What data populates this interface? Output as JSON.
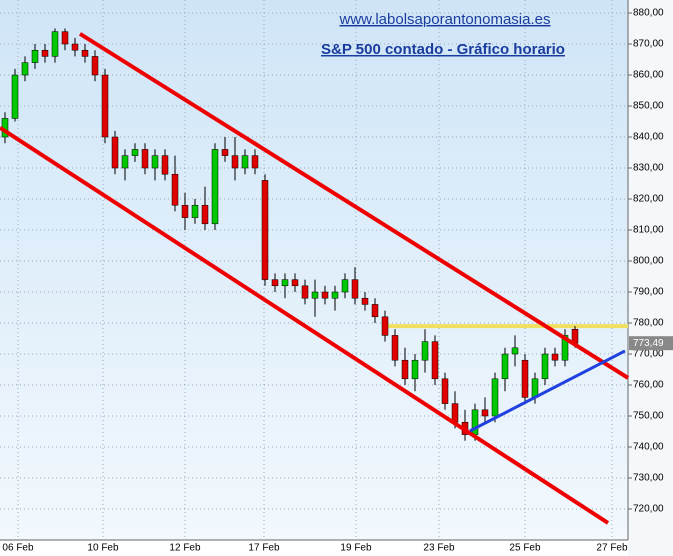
{
  "chart_data": {
    "type": "candlestick",
    "title": "S&P 500 contado - Gráfico horario",
    "subtitle": "www.labolsaporantonomasia.es",
    "open": [
      840,
      846,
      860,
      864,
      868,
      866,
      874,
      870,
      868,
      866,
      860,
      840,
      830,
      834,
      836,
      830,
      834,
      828,
      818,
      814,
      818,
      812,
      836,
      834,
      830,
      834,
      826,
      794,
      792,
      794,
      792,
      788,
      790,
      788,
      790,
      794,
      788,
      786,
      782,
      776,
      768,
      762,
      768,
      774,
      762,
      754,
      748,
      744,
      752,
      750,
      762,
      770,
      768,
      756,
      762,
      770,
      768,
      778
    ],
    "high": [
      848,
      862,
      866,
      870,
      870,
      875,
      875,
      872,
      870,
      868,
      862,
      842,
      836,
      838,
      838,
      836,
      836,
      834,
      822,
      820,
      824,
      838,
      840,
      840,
      836,
      836,
      828,
      796,
      796,
      796,
      794,
      794,
      792,
      792,
      796,
      798,
      790,
      788,
      784,
      778,
      772,
      770,
      778,
      776,
      764,
      758,
      752,
      754,
      756,
      764,
      772,
      776,
      770,
      764,
      772,
      772,
      778,
      779
    ],
    "low": [
      838,
      845,
      858,
      862,
      864,
      864,
      868,
      866,
      864,
      858,
      838,
      828,
      826,
      832,
      828,
      826,
      826,
      816,
      810,
      812,
      810,
      810,
      832,
      826,
      828,
      828,
      792,
      790,
      788,
      790,
      786,
      782,
      786,
      784,
      788,
      786,
      784,
      780,
      774,
      766,
      760,
      758,
      764,
      760,
      752,
      746,
      742,
      742,
      748,
      748,
      758,
      766,
      754,
      754,
      760,
      766,
      766,
      772
    ],
    "close": [
      846,
      860,
      864,
      868,
      866,
      874,
      870,
      868,
      866,
      860,
      840,
      830,
      834,
      836,
      830,
      834,
      828,
      818,
      814,
      818,
      812,
      836,
      834,
      830,
      834,
      830,
      794,
      792,
      794,
      792,
      788,
      790,
      788,
      790,
      794,
      788,
      786,
      782,
      776,
      768,
      762,
      768,
      774,
      762,
      754,
      748,
      744,
      752,
      750,
      762,
      770,
      772,
      756,
      762,
      770,
      768,
      776,
      773.49
    ],
    "up_color": "#00c800",
    "down_color": "#e00000",
    "last_price": {
      "value": 773.49,
      "label": "773,49"
    },
    "resistance": {
      "value": 779,
      "color": "#f0e060"
    },
    "channel_upper": {
      "x": [
        7.5,
        62.3
      ],
      "y": [
        873.3,
        762.3
      ],
      "color": "#ee0000"
    },
    "channel_lower": {
      "x": [
        -0.5,
        60.3
      ],
      "y": [
        843,
        715.5
      ],
      "color": "#ee0000"
    },
    "support": {
      "x": [
        46.5,
        62
      ],
      "y": [
        745.2,
        771
      ],
      "color": "#2040e0"
    },
    "xlim": [
      -0.5,
      62.3
    ],
    "ylim": [
      710,
      884.2
    ],
    "xticks": [
      {
        "value": 1.3,
        "label": "06 Feb"
      },
      {
        "value": 9.8,
        "label": "10 Feb"
      },
      {
        "value": 18,
        "label": "12 Feb"
      },
      {
        "value": 25.9,
        "label": "17 Feb"
      },
      {
        "value": 35.1,
        "label": "19 Feb"
      },
      {
        "value": 43.4,
        "label": "23 Feb"
      },
      {
        "value": 52,
        "label": "25 Feb"
      },
      {
        "value": 60.7,
        "label": "27 Feb"
      }
    ],
    "yticks": [
      {
        "value": 720,
        "label": "720,00"
      },
      {
        "value": 730,
        "label": "730,00"
      },
      {
        "value": 740,
        "label": "740,00"
      },
      {
        "value": 750,
        "label": "750,00"
      },
      {
        "value": 760,
        "label": "760,00"
      },
      {
        "value": 770,
        "label": "770,00"
      },
      {
        "value": 780,
        "label": "780,00"
      },
      {
        "value": 790,
        "label": "790,00"
      },
      {
        "value": 800,
        "label": "800,00"
      },
      {
        "value": 810,
        "label": "810,00"
      },
      {
        "value": 820,
        "label": "820,00"
      },
      {
        "value": 830,
        "label": "830,00"
      },
      {
        "value": 840,
        "label": "840,00"
      },
      {
        "value": 850,
        "label": "850,00"
      },
      {
        "value": 860,
        "label": "860,00"
      },
      {
        "value": 870,
        "label": "870,00"
      },
      {
        "value": 880,
        "label": "880,00"
      }
    ],
    "grid": true
  }
}
